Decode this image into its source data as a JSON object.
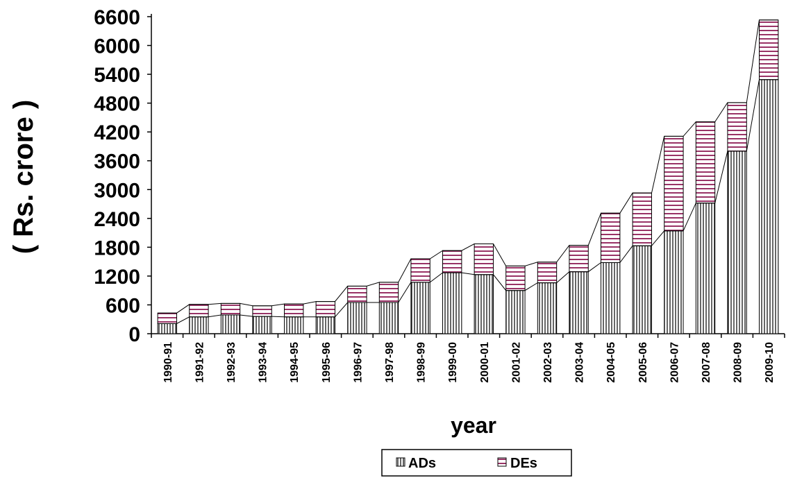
{
  "chart_data": {
    "type": "bar",
    "stacked": true,
    "title": "",
    "xlabel": "year",
    "ylabel": "( Rs.  crore )",
    "ylim": [
      0,
      6600
    ],
    "yticks": [
      0,
      600,
      1200,
      1800,
      2400,
      3000,
      3600,
      4200,
      4800,
      5400,
      6000,
      6600
    ],
    "grid": false,
    "legend_position": "bottom-center",
    "series_lines": true,
    "categories": [
      "1990-91",
      "1991-92",
      "1992-93",
      "1993-94",
      "1994-95",
      "1995-96",
      "1996-97",
      "1997-98",
      "1998-99",
      "1999-00",
      "2000-01",
      "2001-02",
      "2002-03",
      "2003-04",
      "2004-05",
      "2005-06",
      "2006-07",
      "2007-08",
      "2008-09",
      "2009-10"
    ],
    "series": [
      {
        "name": "ADs",
        "pattern": "vertical-lines",
        "color": "#000000",
        "values": [
          210,
          350,
          390,
          360,
          350,
          350,
          650,
          650,
          1070,
          1270,
          1230,
          900,
          1060,
          1290,
          1480,
          1830,
          2140,
          2720,
          3800,
          5290
        ]
      },
      {
        "name": "DEs",
        "pattern": "horizontal-lines",
        "color": "#993366",
        "values": [
          220,
          260,
          240,
          220,
          270,
          320,
          340,
          420,
          490,
          460,
          640,
          510,
          430,
          550,
          1030,
          1100,
          1970,
          1690,
          1010,
          1240
        ]
      }
    ]
  }
}
